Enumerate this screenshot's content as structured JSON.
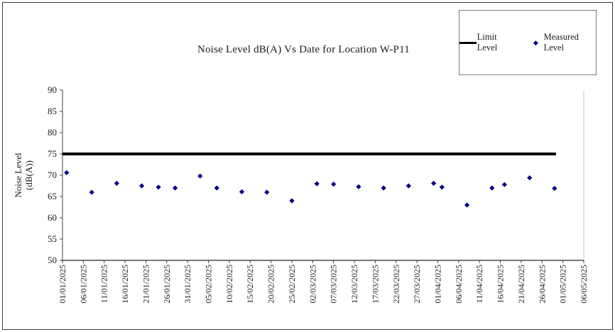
{
  "figure": {
    "title": "Noise Level dB(A) Vs Date for Location W-P11"
  },
  "legend": {
    "position": "top-right",
    "items": [
      {
        "label": "Limit Level",
        "marker": "line",
        "color": "#000000"
      },
      {
        "label": "Measured Level",
        "marker": "diamond",
        "color": "#00008B"
      }
    ]
  },
  "chart_data": {
    "type": "scatter",
    "title": "Noise Level dB(A) Vs Date for Location W-P11",
    "xlabel": "",
    "ylabel": "Noise Level (dB(A))",
    "ylabel_lines": [
      "Noise Level",
      "(dB(A))"
    ],
    "ylim": [
      50,
      90
    ],
    "ytick_step": 5,
    "grid": false,
    "x_tick_interval_days": 5,
    "x_ticklabels": [
      "01/01/2025",
      "06/01/2025",
      "11/01/2025",
      "16/01/2025",
      "21/01/2025",
      "26/01/2025",
      "31/01/2025",
      "05/02/2025",
      "10/02/2025",
      "15/02/2025",
      "20/02/2025",
      "25/02/2025",
      "02/03/2025",
      "07/03/2025",
      "12/03/2025",
      "17/03/2025",
      "22/03/2025",
      "27/03/2025",
      "01/04/2025",
      "06/04/2025",
      "11/04/2025",
      "16/04/2025",
      "21/04/2025",
      "26/04/2025",
      "01/05/2025",
      "06/05/2025"
    ],
    "series": [
      {
        "name": "Limit Level",
        "type": "line",
        "color": "#000000",
        "value": 75
      },
      {
        "name": "Measured Level",
        "type": "scatter",
        "color": "#00008B",
        "points": [
          {
            "date": "02/01/2025",
            "value": 70.6
          },
          {
            "date": "08/01/2025",
            "value": 66.0
          },
          {
            "date": "14/01/2025",
            "value": 68.1
          },
          {
            "date": "20/01/2025",
            "value": 67.5
          },
          {
            "date": "24/01/2025",
            "value": 67.2
          },
          {
            "date": "28/01/2025",
            "value": 67.0
          },
          {
            "date": "03/02/2025",
            "value": 69.8
          },
          {
            "date": "07/02/2025",
            "value": 67.0
          },
          {
            "date": "13/02/2025",
            "value": 66.1
          },
          {
            "date": "19/02/2025",
            "value": 66.0
          },
          {
            "date": "25/02/2025",
            "value": 64.0
          },
          {
            "date": "03/03/2025",
            "value": 68.0
          },
          {
            "date": "07/03/2025",
            "value": 67.9
          },
          {
            "date": "13/03/2025",
            "value": 67.3
          },
          {
            "date": "19/03/2025",
            "value": 67.0
          },
          {
            "date": "25/03/2025",
            "value": 67.5
          },
          {
            "date": "31/03/2025",
            "value": 68.1
          },
          {
            "date": "02/04/2025",
            "value": 67.2
          },
          {
            "date": "08/04/2025",
            "value": 63.0
          },
          {
            "date": "14/04/2025",
            "value": 67.0
          },
          {
            "date": "17/04/2025",
            "value": 67.8
          },
          {
            "date": "23/04/2025",
            "value": 69.4
          },
          {
            "date": "29/04/2025",
            "value": 66.9
          }
        ]
      }
    ]
  }
}
